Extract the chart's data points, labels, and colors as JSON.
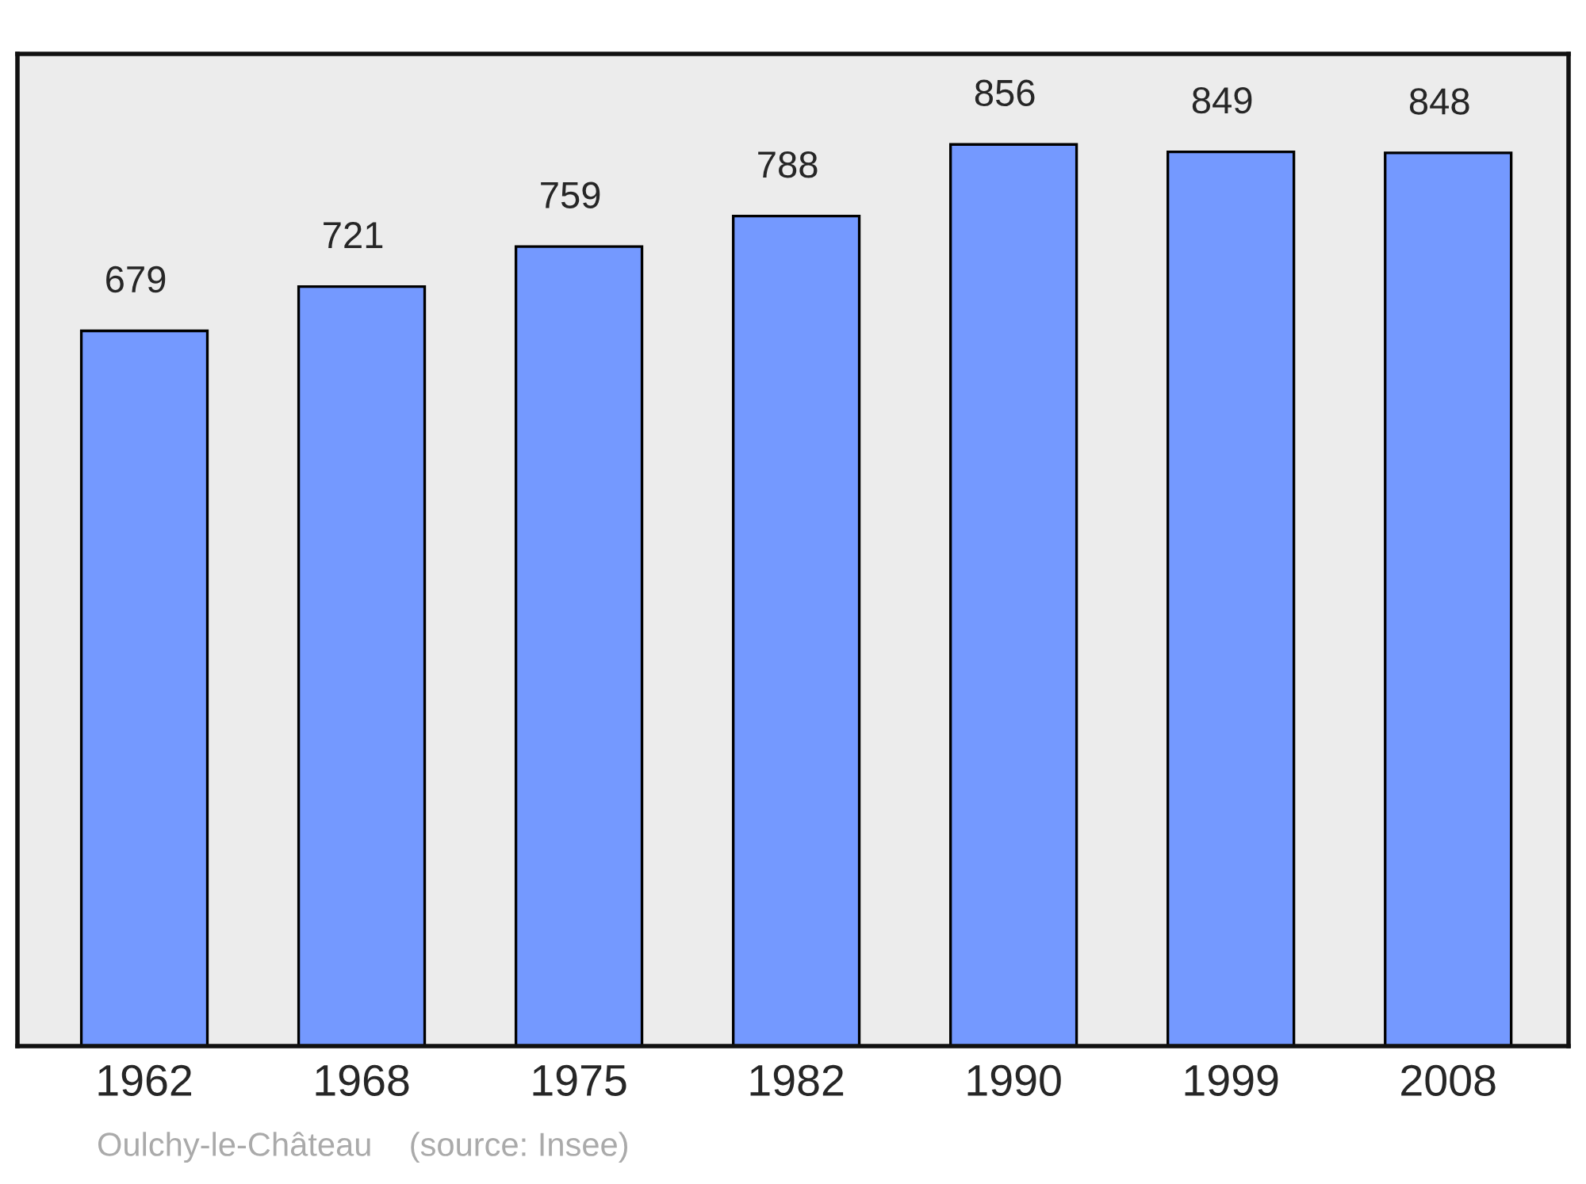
{
  "chart_data": {
    "type": "bar",
    "categories": [
      "1962",
      "1968",
      "1975",
      "1982",
      "1990",
      "1999",
      "2008"
    ],
    "values": [
      679,
      721,
      759,
      788,
      856,
      849,
      848
    ],
    "color": "#7499ff",
    "ylim": [
      0,
      942
    ],
    "tick_labels": "x",
    "data_labels": true,
    "grid": false,
    "legend": false,
    "annotations": [
      "Oulchy-le-Château    (source: Insee)"
    ]
  }
}
